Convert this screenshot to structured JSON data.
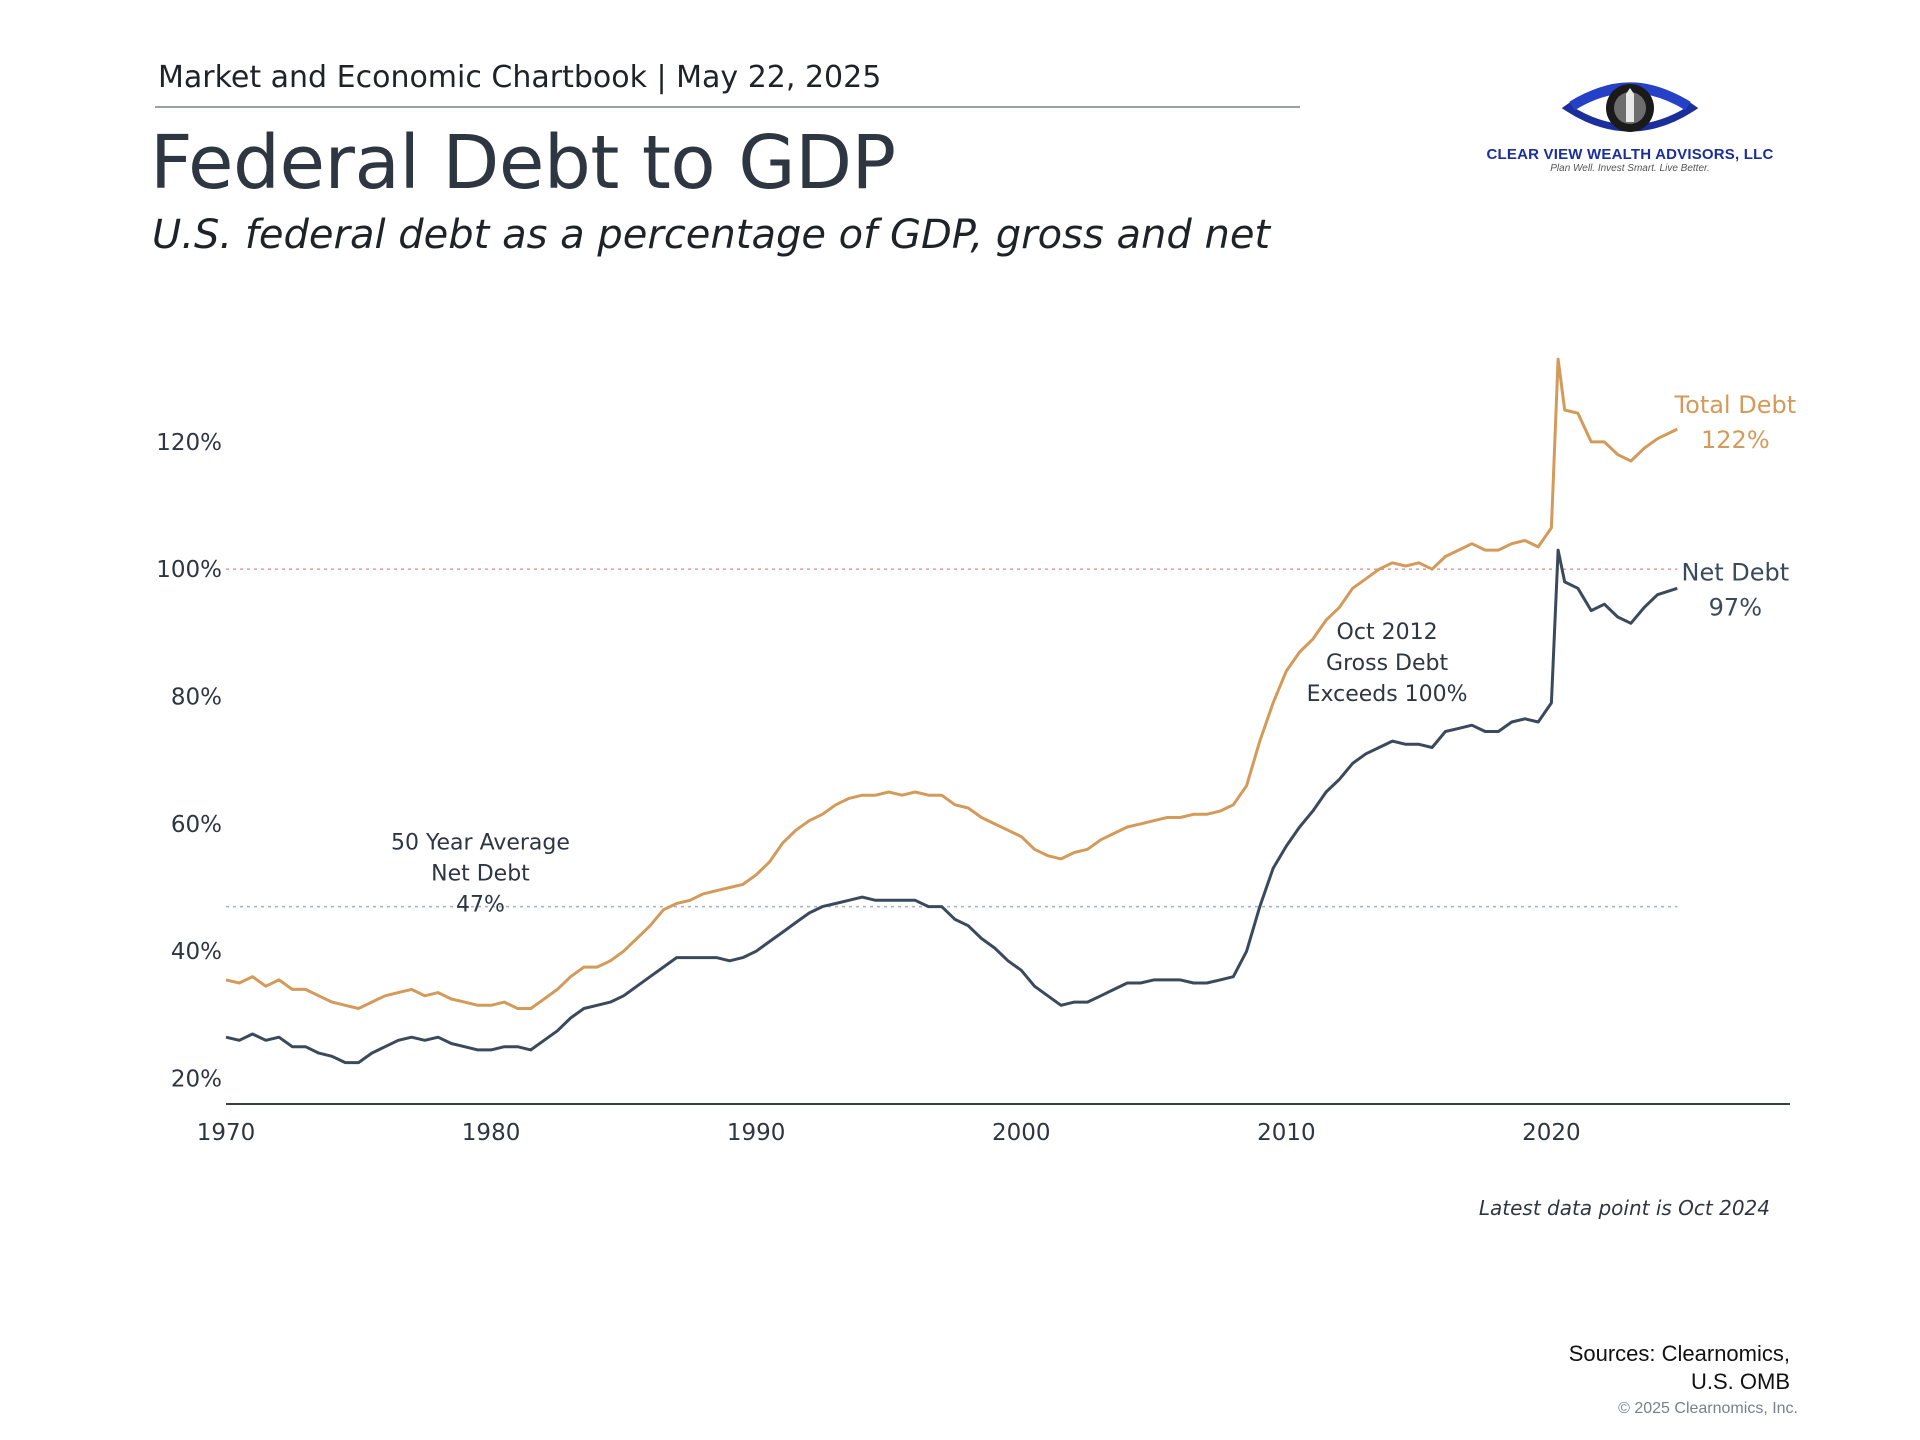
{
  "header": {
    "chartbook": "Market and Economic Chartbook | May 22, 2025",
    "title": "Federal Debt to GDP",
    "subtitle": "U.S. federal debt as a percentage of GDP, gross and net"
  },
  "logo": {
    "name": "CLEAR VIEW WEALTH ADVISORS, LLC",
    "tagline": "Plan Well. Invest Smart. Live Better.",
    "brand_color": "#1b2f9c"
  },
  "footer": {
    "note": "Latest data point is Oct 2024",
    "sources_line1": "Sources: Clearnomics,",
    "sources_line2": "U.S. OMB",
    "copyright": "© 2025 Clearnomics, Inc."
  },
  "chart_data": {
    "type": "line",
    "title": "Federal Debt to GDP",
    "xlabel": "",
    "ylabel": "",
    "xlim": [
      1970,
      2029
    ],
    "ylim": [
      16,
      136
    ],
    "x_ticks": [
      1970,
      1980,
      1990,
      2000,
      2010,
      2020
    ],
    "y_ticks": [
      {
        "value": 20,
        "label": "20%"
      },
      {
        "value": 40,
        "label": "40%"
      },
      {
        "value": 60,
        "label": "60%"
      },
      {
        "value": 80,
        "label": "80%"
      },
      {
        "value": 100,
        "label": "100%"
      },
      {
        "value": 120,
        "label": "120%"
      }
    ],
    "reference_lines": [
      {
        "value": 100,
        "color": "#e8a0a0",
        "style": "dotted"
      },
      {
        "value": 47,
        "color": "#9fb4d0",
        "style": "dotted"
      }
    ],
    "series": [
      {
        "name": "Total Debt",
        "color": "#d49a5a",
        "end_label": "Total Debt",
        "end_value_label": "122%",
        "points": [
          [
            1970,
            35.5
          ],
          [
            1970.5,
            35
          ],
          [
            1971,
            36
          ],
          [
            1971.5,
            34.5
          ],
          [
            1972,
            35.5
          ],
          [
            1972.5,
            34
          ],
          [
            1973,
            34
          ],
          [
            1973.5,
            33
          ],
          [
            1974,
            32
          ],
          [
            1974.5,
            31.5
          ],
          [
            1975,
            31
          ],
          [
            1975.5,
            32
          ],
          [
            1976,
            33
          ],
          [
            1976.5,
            33.5
          ],
          [
            1977,
            34
          ],
          [
            1977.5,
            33
          ],
          [
            1978,
            33.5
          ],
          [
            1978.5,
            32.5
          ],
          [
            1979,
            32
          ],
          [
            1979.5,
            31.5
          ],
          [
            1980,
            31.5
          ],
          [
            1980.5,
            32
          ],
          [
            1981,
            31
          ],
          [
            1981.5,
            31
          ],
          [
            1982,
            32.5
          ],
          [
            1982.5,
            34
          ],
          [
            1983,
            36
          ],
          [
            1983.5,
            37.5
          ],
          [
            1984,
            37.5
          ],
          [
            1984.5,
            38.5
          ],
          [
            1985,
            40
          ],
          [
            1985.5,
            42
          ],
          [
            1986,
            44
          ],
          [
            1986.5,
            46.5
          ],
          [
            1987,
            47.5
          ],
          [
            1987.5,
            48
          ],
          [
            1988,
            49
          ],
          [
            1988.5,
            49.5
          ],
          [
            1989,
            50
          ],
          [
            1989.5,
            50.5
          ],
          [
            1990,
            52
          ],
          [
            1990.5,
            54
          ],
          [
            1991,
            57
          ],
          [
            1991.5,
            59
          ],
          [
            1992,
            60.5
          ],
          [
            1992.5,
            61.5
          ],
          [
            1993,
            63
          ],
          [
            1993.5,
            64
          ],
          [
            1994,
            64.5
          ],
          [
            1994.5,
            64.5
          ],
          [
            1995,
            65
          ],
          [
            1995.5,
            64.5
          ],
          [
            1996,
            65
          ],
          [
            1996.5,
            64.5
          ],
          [
            1997,
            64.5
          ],
          [
            1997.5,
            63
          ],
          [
            1998,
            62.5
          ],
          [
            1998.5,
            61
          ],
          [
            1999,
            60
          ],
          [
            1999.5,
            59
          ],
          [
            2000,
            58
          ],
          [
            2000.5,
            56
          ],
          [
            2001,
            55
          ],
          [
            2001.5,
            54.5
          ],
          [
            2002,
            55.5
          ],
          [
            2002.5,
            56
          ],
          [
            2003,
            57.5
          ],
          [
            2003.5,
            58.5
          ],
          [
            2004,
            59.5
          ],
          [
            2004.5,
            60
          ],
          [
            2005,
            60.5
          ],
          [
            2005.5,
            61
          ],
          [
            2006,
            61
          ],
          [
            2006.5,
            61.5
          ],
          [
            2007,
            61.5
          ],
          [
            2007.5,
            62
          ],
          [
            2008,
            63
          ],
          [
            2008.5,
            66
          ],
          [
            2009,
            73
          ],
          [
            2009.5,
            79
          ],
          [
            2010,
            84
          ],
          [
            2010.5,
            87
          ],
          [
            2011,
            89
          ],
          [
            2011.5,
            92
          ],
          [
            2012,
            94
          ],
          [
            2012.5,
            97
          ],
          [
            2013,
            98.5
          ],
          [
            2013.5,
            100
          ],
          [
            2014,
            101
          ],
          [
            2014.5,
            100.5
          ],
          [
            2015,
            101
          ],
          [
            2015.5,
            100
          ],
          [
            2016,
            102
          ],
          [
            2016.5,
            103
          ],
          [
            2017,
            104
          ],
          [
            2017.5,
            103
          ],
          [
            2018,
            103
          ],
          [
            2018.5,
            104
          ],
          [
            2019,
            104.5
          ],
          [
            2019.5,
            103.5
          ],
          [
            2020,
            106.5
          ],
          [
            2020.25,
            133
          ],
          [
            2020.5,
            125
          ],
          [
            2021,
            124.5
          ],
          [
            2021.5,
            120
          ],
          [
            2022,
            120
          ],
          [
            2022.5,
            118
          ],
          [
            2023,
            117
          ],
          [
            2023.5,
            119
          ],
          [
            2024,
            120.5
          ],
          [
            2024.75,
            122
          ]
        ]
      },
      {
        "name": "Net Debt",
        "color": "#3a4a5c",
        "end_label": "Net Debt",
        "end_value_label": "97%",
        "points": [
          [
            1970,
            26.5
          ],
          [
            1970.5,
            26
          ],
          [
            1971,
            27
          ],
          [
            1971.5,
            26
          ],
          [
            1972,
            26.5
          ],
          [
            1972.5,
            25
          ],
          [
            1973,
            25
          ],
          [
            1973.5,
            24
          ],
          [
            1974,
            23.5
          ],
          [
            1974.5,
            22.5
          ],
          [
            1975,
            22.5
          ],
          [
            1975.5,
            24
          ],
          [
            1976,
            25
          ],
          [
            1976.5,
            26
          ],
          [
            1977,
            26.5
          ],
          [
            1977.5,
            26
          ],
          [
            1978,
            26.5
          ],
          [
            1978.5,
            25.5
          ],
          [
            1979,
            25
          ],
          [
            1979.5,
            24.5
          ],
          [
            1980,
            24.5
          ],
          [
            1980.5,
            25
          ],
          [
            1981,
            25
          ],
          [
            1981.5,
            24.5
          ],
          [
            1982,
            26
          ],
          [
            1982.5,
            27.5
          ],
          [
            1983,
            29.5
          ],
          [
            1983.5,
            31
          ],
          [
            1984,
            31.5
          ],
          [
            1984.5,
            32
          ],
          [
            1985,
            33
          ],
          [
            1985.5,
            34.5
          ],
          [
            1986,
            36
          ],
          [
            1986.5,
            37.5
          ],
          [
            1987,
            39
          ],
          [
            1987.5,
            39
          ],
          [
            1988,
            39
          ],
          [
            1988.5,
            39
          ],
          [
            1989,
            38.5
          ],
          [
            1989.5,
            39
          ],
          [
            1990,
            40
          ],
          [
            1990.5,
            41.5
          ],
          [
            1991,
            43
          ],
          [
            1991.5,
            44.5
          ],
          [
            1992,
            46
          ],
          [
            1992.5,
            47
          ],
          [
            1993,
            47.5
          ],
          [
            1993.5,
            48
          ],
          [
            1994,
            48.5
          ],
          [
            1994.5,
            48
          ],
          [
            1995,
            48
          ],
          [
            1995.5,
            48
          ],
          [
            1996,
            48
          ],
          [
            1996.5,
            47
          ],
          [
            1997,
            47
          ],
          [
            1997.5,
            45
          ],
          [
            1998,
            44
          ],
          [
            1998.5,
            42
          ],
          [
            1999,
            40.5
          ],
          [
            1999.5,
            38.5
          ],
          [
            2000,
            37
          ],
          [
            2000.5,
            34.5
          ],
          [
            2001,
            33
          ],
          [
            2001.5,
            31.5
          ],
          [
            2002,
            32
          ],
          [
            2002.5,
            32
          ],
          [
            2003,
            33
          ],
          [
            2003.5,
            34
          ],
          [
            2004,
            35
          ],
          [
            2004.5,
            35
          ],
          [
            2005,
            35.5
          ],
          [
            2005.5,
            35.5
          ],
          [
            2006,
            35.5
          ],
          [
            2006.5,
            35
          ],
          [
            2007,
            35
          ],
          [
            2007.5,
            35.5
          ],
          [
            2008,
            36
          ],
          [
            2008.5,
            40
          ],
          [
            2009,
            47
          ],
          [
            2009.5,
            53
          ],
          [
            2010,
            56.5
          ],
          [
            2010.5,
            59.5
          ],
          [
            2011,
            62
          ],
          [
            2011.5,
            65
          ],
          [
            2012,
            67
          ],
          [
            2012.5,
            69.5
          ],
          [
            2013,
            71
          ],
          [
            2013.5,
            72
          ],
          [
            2014,
            73
          ],
          [
            2014.5,
            72.5
          ],
          [
            2015,
            72.5
          ],
          [
            2015.5,
            72
          ],
          [
            2016,
            74.5
          ],
          [
            2016.5,
            75
          ],
          [
            2017,
            75.5
          ],
          [
            2017.5,
            74.5
          ],
          [
            2018,
            74.5
          ],
          [
            2018.5,
            76
          ],
          [
            2019,
            76.5
          ],
          [
            2019.5,
            76
          ],
          [
            2020,
            79
          ],
          [
            2020.25,
            103
          ],
          [
            2020.5,
            98
          ],
          [
            2021,
            97
          ],
          [
            2021.5,
            93.5
          ],
          [
            2022,
            94.5
          ],
          [
            2022.5,
            92.5
          ],
          [
            2023,
            91.5
          ],
          [
            2023.5,
            94
          ],
          [
            2024,
            96
          ],
          [
            2024.75,
            97
          ]
        ]
      }
    ],
    "annotations": [
      {
        "lines": [
          "Oct 2012",
          "Gross Debt",
          "Exceeds 100%"
        ],
        "x": 2013.8,
        "y": 89
      },
      {
        "lines": [
          "50 Year Average",
          "Net Debt",
          "47%"
        ],
        "x": 1979.6,
        "y": 56
      }
    ]
  }
}
